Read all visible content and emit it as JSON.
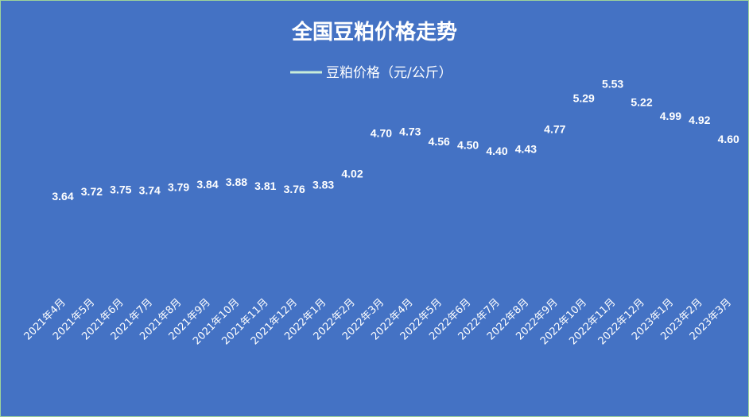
{
  "chart_data": {
    "type": "line",
    "title": "全国豆粕价格走势",
    "legend_position": "top-center",
    "grid": false,
    "categories": [
      "2021年4月",
      "2021年5月",
      "2021年6月",
      "2021年7月",
      "2021年8月",
      "2021年9月",
      "2021年10月",
      "2021年11月",
      "2021年12月",
      "2022年1月",
      "2022年2月",
      "2022年3月",
      "2022年4月",
      "2022年5月",
      "2022年6月",
      "2022年7月",
      "2022年8月",
      "2022年9月",
      "2022年10月",
      "2022年11月",
      "2022年12月",
      "2023年1月",
      "2023年2月",
      "2023年3月"
    ],
    "series": [
      {
        "name": "豆粕价格（元/公斤）",
        "values": [
          3.64,
          3.72,
          3.75,
          3.74,
          3.79,
          3.84,
          3.88,
          3.81,
          3.76,
          3.83,
          4.02,
          4.7,
          4.73,
          4.56,
          4.5,
          4.4,
          4.43,
          4.77,
          5.29,
          5.53,
          5.22,
          4.99,
          4.92,
          4.6
        ],
        "value_labels": [
          "3.64",
          "3.72",
          "3.75",
          "3.74",
          "3.79",
          "3.84",
          "3.88",
          "3.81",
          "3.76",
          "3.83",
          "4.02",
          "4.70",
          "4.73",
          "4.56",
          "4.50",
          "4.40",
          "4.43",
          "4.77",
          "5.29",
          "5.53",
          "5.22",
          "4.99",
          "4.92",
          "4.60"
        ]
      }
    ],
    "ylim": [
      2.3,
      5.75
    ],
    "colors": {
      "background": "#4472c4",
      "border": "#9ed39a",
      "line_top": "#ffffff",
      "line_bottom": "#4472c4",
      "legend_line": "#c8ecd9",
      "text": "#ffffff"
    }
  }
}
